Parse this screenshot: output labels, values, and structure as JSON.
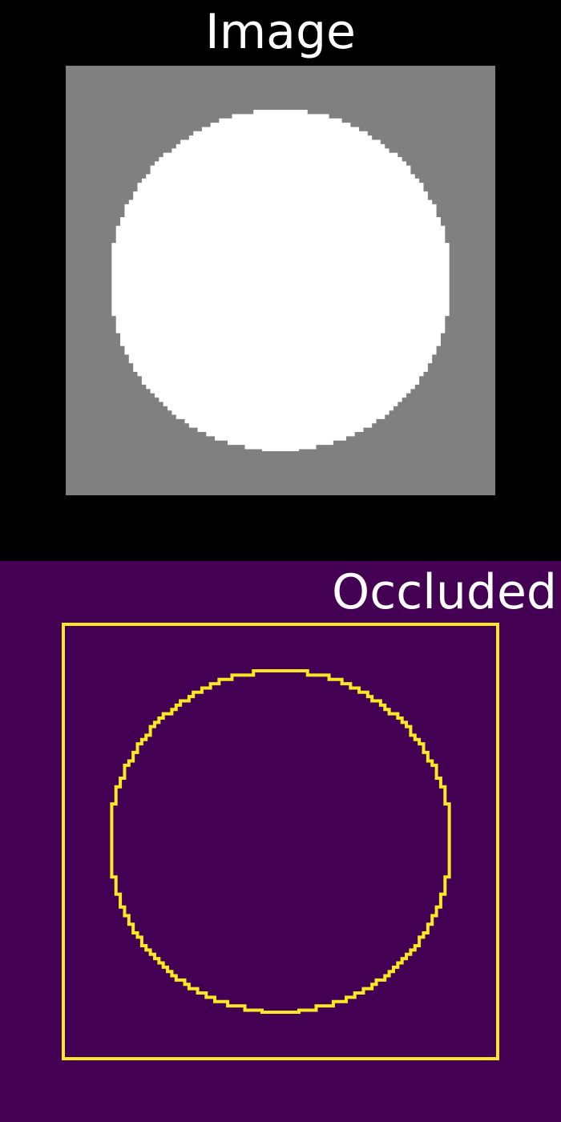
{
  "panels": [
    {
      "title": "Image",
      "background_color": "#000000",
      "image_background_color": "#808080",
      "shape_color": "#ffffff"
    },
    {
      "title": "Occluded",
      "background_color": "#440154",
      "outline_color": "#fde725"
    }
  ]
}
